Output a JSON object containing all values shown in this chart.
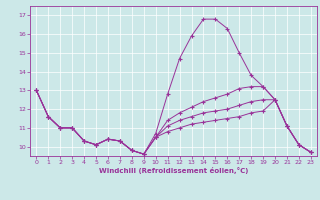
{
  "xlabel": "Windchill (Refroidissement éolien,°C)",
  "xlim": [
    -0.5,
    23.5
  ],
  "ylim": [
    9.5,
    17.5
  ],
  "xticks": [
    0,
    1,
    2,
    3,
    4,
    5,
    6,
    7,
    8,
    9,
    10,
    11,
    12,
    13,
    14,
    15,
    16,
    17,
    18,
    19,
    20,
    21,
    22,
    23
  ],
  "yticks": [
    10,
    11,
    12,
    13,
    14,
    15,
    16,
    17
  ],
  "background_color": "#cce8e8",
  "line_color": "#993399",
  "series": [
    {
      "x": [
        0,
        1,
        2,
        3,
        4,
        5,
        6,
        7,
        8,
        9,
        10,
        11,
        12,
        13,
        14,
        15,
        16,
        17,
        18,
        19,
        20,
        21,
        22,
        23
      ],
      "y": [
        13.0,
        11.6,
        11.0,
        11.0,
        10.3,
        10.1,
        10.4,
        10.3,
        9.8,
        9.6,
        10.7,
        12.8,
        14.7,
        15.9,
        16.8,
        16.8,
        16.3,
        15.0,
        13.8,
        13.2,
        12.5,
        11.1,
        10.1,
        9.7
      ]
    },
    {
      "x": [
        0,
        1,
        2,
        3,
        4,
        5,
        6,
        7,
        8,
        9,
        10,
        11,
        12,
        13,
        14,
        15,
        16,
        17,
        18,
        19,
        20,
        21,
        22,
        23
      ],
      "y": [
        13.0,
        11.6,
        11.0,
        11.0,
        10.3,
        10.1,
        10.4,
        10.3,
        9.8,
        9.6,
        10.5,
        11.4,
        11.8,
        12.1,
        12.4,
        12.6,
        12.8,
        13.1,
        13.2,
        13.2,
        12.5,
        11.1,
        10.1,
        9.7
      ]
    },
    {
      "x": [
        0,
        1,
        2,
        3,
        4,
        5,
        6,
        7,
        8,
        9,
        10,
        11,
        12,
        13,
        14,
        15,
        16,
        17,
        18,
        19,
        20,
        21,
        22,
        23
      ],
      "y": [
        13.0,
        11.6,
        11.0,
        11.0,
        10.3,
        10.1,
        10.4,
        10.3,
        9.8,
        9.6,
        10.5,
        11.1,
        11.4,
        11.6,
        11.8,
        11.9,
        12.0,
        12.2,
        12.4,
        12.5,
        12.5,
        11.1,
        10.1,
        9.7
      ]
    },
    {
      "x": [
        0,
        1,
        2,
        3,
        4,
        5,
        6,
        7,
        8,
        9,
        10,
        11,
        12,
        13,
        14,
        15,
        16,
        17,
        18,
        19,
        20,
        21,
        22,
        23
      ],
      "y": [
        13.0,
        11.6,
        11.0,
        11.0,
        10.3,
        10.1,
        10.4,
        10.3,
        9.8,
        9.6,
        10.5,
        10.8,
        11.0,
        11.2,
        11.3,
        11.4,
        11.5,
        11.6,
        11.8,
        11.9,
        12.5,
        11.1,
        10.1,
        9.7
      ]
    }
  ]
}
